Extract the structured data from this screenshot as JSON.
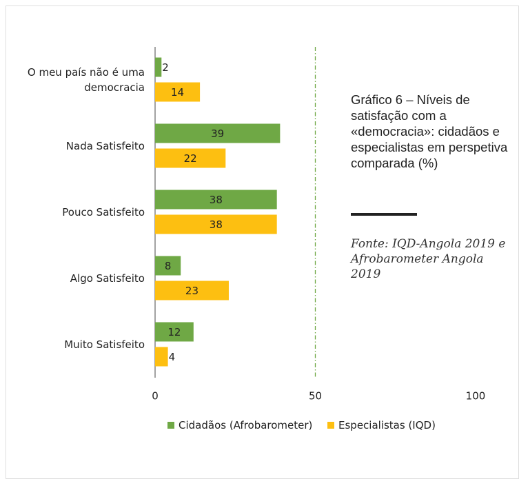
{
  "chart_data": {
    "type": "bar",
    "orientation": "horizontal",
    "title": "Gráfico 6 – Níveis de satisfação com a «democracia»: cidadãos e especialistas em perspetiva comparada (%)",
    "source": "Fonte: IQD-Angola 2019 e Afrobarometer Angola 2019",
    "categories": [
      "O meu país não é uma democracia",
      "Nada Satisfeito",
      "Pouco Satisfeito",
      "Algo Satisfeito",
      "Muito Satisfeito"
    ],
    "series": [
      {
        "name": "Cidadãos (Afrobarometer)",
        "color": "#6fa845",
        "values": [
          2,
          39,
          38,
          8,
          12
        ]
      },
      {
        "name": "Especialistas (IQD)",
        "color": "#fdbf11",
        "values": [
          14,
          22,
          38,
          23,
          4
        ]
      }
    ],
    "xlim": [
      0,
      100
    ],
    "xticks": [
      0,
      50,
      100
    ],
    "reference_line": 50,
    "legend": "bottom"
  }
}
